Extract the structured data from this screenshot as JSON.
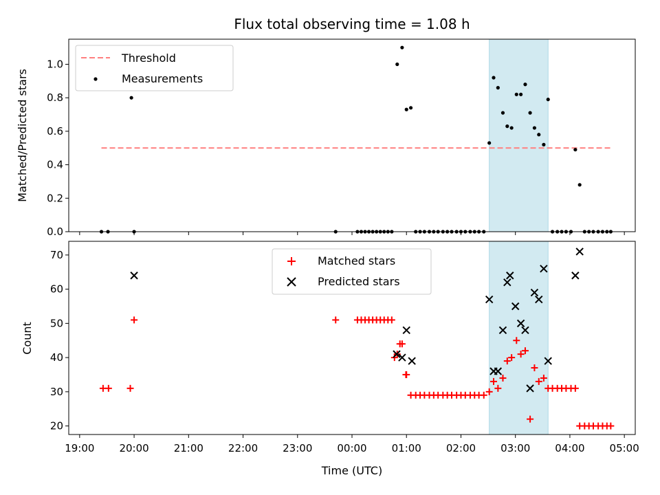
{
  "chart_data": [
    {
      "type": "scatter",
      "title": "Flux total observing time = 1.08 h",
      "xlabel": "",
      "ylabel": "Matched/Predicted stars",
      "ylim": [
        0,
        1.15
      ],
      "yticks": [
        "0.0",
        "0.2",
        "0.4",
        "0.6",
        "0.8",
        "1.0"
      ],
      "ytick_values": [
        0,
        0.2,
        0.4,
        0.6,
        0.8,
        1.0
      ],
      "highlight_span": {
        "start_h": 2.52,
        "end_h": 3.6,
        "color": "#add8e6"
      },
      "threshold": {
        "name": "Threshold",
        "value": 0.5,
        "x_start_h": -4.6,
        "x_end_h": 4.75,
        "color": "#ff7f7f"
      },
      "legend": [
        "Threshold",
        "Measurements"
      ],
      "series": [
        {
          "name": "Measurements",
          "color": "#000000",
          "x_hours": [
            -4.6,
            -4.48,
            -4.05,
            -4.0,
            -0.3,
            0.1,
            0.17,
            0.24,
            0.31,
            0.38,
            0.45,
            0.52,
            0.59,
            0.66,
            0.73,
            0.83,
            0.92,
            1.0,
            1.08,
            1.17,
            1.25,
            1.33,
            1.42,
            1.5,
            1.58,
            1.67,
            1.75,
            1.83,
            1.92,
            2.0,
            2.08,
            2.17,
            2.25,
            2.33,
            2.42,
            2.52,
            2.6,
            2.68,
            2.77,
            2.85,
            2.93,
            3.02,
            3.1,
            3.18,
            3.27,
            3.35,
            3.43,
            3.52,
            3.6,
            3.68,
            3.77,
            3.85,
            3.93,
            4.02,
            4.1,
            4.18,
            4.27,
            4.35,
            4.43,
            4.52,
            4.6,
            4.68,
            4.75
          ],
          "y": [
            0,
            0,
            0.8,
            0,
            0,
            0,
            0,
            0,
            0,
            0,
            0,
            0,
            0,
            0,
            0,
            1.0,
            1.1,
            0.73,
            0.74,
            0,
            0,
            0,
            0,
            0,
            0,
            0,
            0,
            0,
            0,
            0,
            0,
            0,
            0,
            0,
            0,
            0.53,
            0.92,
            0.86,
            0.71,
            0.63,
            0.62,
            0.82,
            0.82,
            0.88,
            0.71,
            0.62,
            0.58,
            0.52,
            0.79,
            0,
            0,
            0,
            0,
            0,
            0.49,
            0.28,
            0,
            0,
            0,
            0,
            0,
            0,
            0
          ]
        }
      ]
    },
    {
      "type": "scatter",
      "title": "",
      "xlabel": "Time (UTC)",
      "ylabel": "Count",
      "ylim": [
        17.5,
        74
      ],
      "yticks": [
        "20",
        "30",
        "40",
        "50",
        "60",
        "70"
      ],
      "ytick_values": [
        20,
        30,
        40,
        50,
        60,
        70
      ],
      "xlim_hours": [
        -5.2,
        5.2
      ],
      "xticks": [
        "19:00",
        "20:00",
        "21:00",
        "22:00",
        "23:00",
        "00:00",
        "01:00",
        "02:00",
        "03:00",
        "04:00",
        "05:00"
      ],
      "xtick_hours": [
        -5,
        -4,
        -3,
        -2,
        -1,
        0,
        1,
        2,
        3,
        4,
        5
      ],
      "legend": [
        "Matched stars",
        "Predicted stars"
      ],
      "series": [
        {
          "name": "Matched stars",
          "color": "#ff0000",
          "marker": "plus",
          "x_hours": [
            -4.57,
            -4.47,
            -4.07,
            -4.0,
            -0.3,
            0.1,
            0.17,
            0.24,
            0.31,
            0.38,
            0.45,
            0.52,
            0.59,
            0.66,
            0.73,
            0.83,
            0.92,
            1.0,
            1.08,
            1.17,
            1.25,
            1.33,
            1.42,
            1.5,
            1.58,
            1.67,
            1.75,
            1.83,
            1.92,
            2.0,
            2.08,
            2.17,
            2.25,
            2.33,
            2.42,
            2.52,
            2.6,
            2.68,
            2.77,
            2.85,
            2.93,
            3.02,
            3.1,
            3.18,
            3.27,
            3.35,
            3.43,
            3.52,
            3.6,
            3.68,
            3.77,
            3.85,
            3.93,
            4.02,
            4.1,
            4.18,
            4.27,
            4.35,
            4.43,
            4.52,
            4.6,
            4.68,
            4.75,
            0.78,
            0.88,
            0.99
          ],
          "y": [
            31,
            31,
            31,
            51,
            51,
            51,
            51,
            51,
            51,
            51,
            51,
            51,
            51,
            51,
            51,
            41,
            44,
            35,
            29,
            29,
            29,
            29,
            29,
            29,
            29,
            29,
            29,
            29,
            29,
            29,
            29,
            29,
            29,
            29,
            29,
            30,
            33,
            31,
            34,
            39,
            40,
            45,
            41,
            42,
            22,
            37,
            33,
            34,
            31,
            31,
            31,
            31,
            31,
            31,
            31,
            20,
            20,
            20,
            20,
            20,
            20,
            20,
            20,
            40,
            44,
            35
          ]
        },
        {
          "name": "Predicted stars",
          "color": "#000000",
          "marker": "x",
          "x_hours": [
            -4.0,
            0.82,
            0.92,
            1.0,
            1.1,
            2.52,
            2.6,
            2.68,
            2.77,
            2.85,
            2.9,
            3.0,
            3.1,
            3.18,
            3.27,
            3.35,
            3.43,
            3.52,
            3.6,
            4.1,
            4.18
          ],
          "y": [
            64,
            41,
            40,
            48,
            39,
            57,
            36,
            36,
            48,
            62,
            64,
            55,
            50,
            48,
            31,
            59,
            57,
            66,
            39,
            64,
            71
          ]
        }
      ]
    }
  ]
}
